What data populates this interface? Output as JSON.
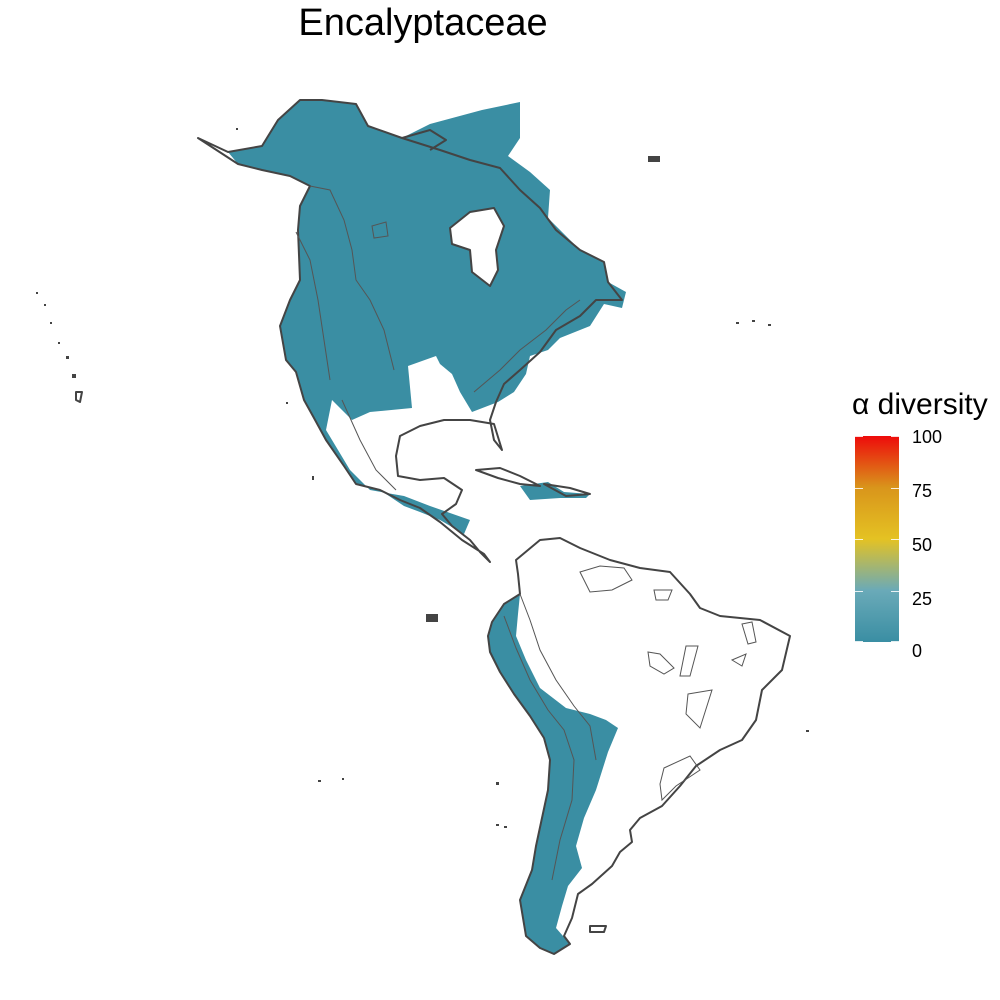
{
  "title": "Encalyptaceae",
  "legend": {
    "title": "α diversity",
    "ticks": [
      "100",
      "75",
      "50",
      "25",
      "0"
    ],
    "range": [
      0,
      100
    ],
    "gradient_colors": [
      "#3a8ea3",
      "#6aaab8",
      "#e4c223",
      "#d9951b",
      "#ee0b0b"
    ]
  },
  "colors": {
    "fill": "#3a8ea3",
    "outline": "#444444",
    "background": "#ffffff"
  },
  "map_layers": {
    "diversity_fill": "present across North America, Central America, Andes and southern South America",
    "empty_regions": [
      "Gulf of Mexico coast",
      "Hudson Bay",
      "Amazon basin",
      "Brazilian highlands"
    ]
  }
}
